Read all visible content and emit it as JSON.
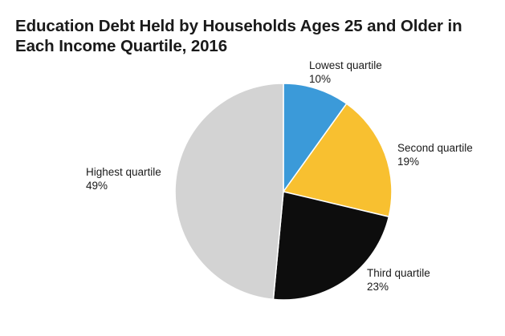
{
  "chart_data": {
    "type": "pie",
    "title": "Education Debt Held by Households Ages 25 and Older in Each Income Quartile, 2016",
    "slices": [
      {
        "label": "Lowest quartile",
        "value": 10,
        "display": "10%",
        "color": "#3b9ad9"
      },
      {
        "label": "Second quartile",
        "value": 19,
        "display": "19%",
        "color": "#f8c030"
      },
      {
        "label": "Third quartile",
        "value": 23,
        "display": "23%",
        "color": "#0d0d0d"
      },
      {
        "label": "Highest quartile",
        "value": 49,
        "display": "49%",
        "color": "#d3d3d3"
      }
    ],
    "start_angle": "12 o'clock",
    "direction": "clockwise",
    "legend": "none"
  }
}
